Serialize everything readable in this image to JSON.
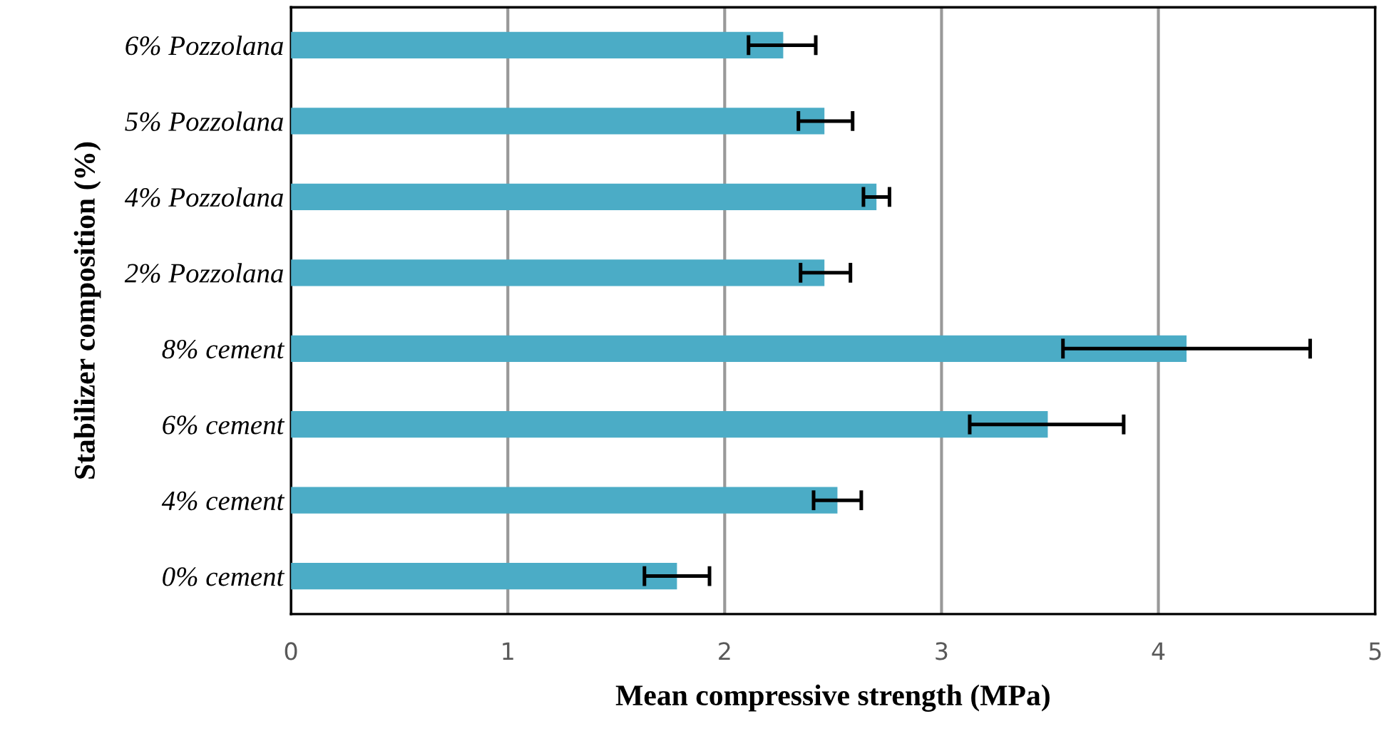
{
  "chart_data": {
    "type": "bar",
    "orientation": "horizontal",
    "xlabel": "Mean compressive strength (MPa)",
    "ylabel": "Stabilizer composition (%)",
    "categories": [
      "6% Pozzolana",
      "5% Pozzolana",
      "4% Pozzolana",
      "2% Pozzolana",
      "8% cement",
      "6% cement",
      "4% cement",
      "0% cement"
    ],
    "values": [
      2.27,
      2.46,
      2.7,
      2.46,
      4.13,
      3.49,
      2.52,
      1.78
    ],
    "errors": [
      [
        2.11,
        2.42
      ],
      [
        2.34,
        2.59
      ],
      [
        2.64,
        2.76
      ],
      [
        2.35,
        2.58
      ],
      [
        3.56,
        4.7
      ],
      [
        3.13,
        3.84
      ],
      [
        2.41,
        2.63
      ],
      [
        1.63,
        1.93
      ]
    ],
    "color": "#4bacc6",
    "xlim": [
      0,
      5
    ],
    "xticks": [
      0,
      1,
      2,
      3,
      4,
      5
    ],
    "grid": "x",
    "legend": false
  }
}
